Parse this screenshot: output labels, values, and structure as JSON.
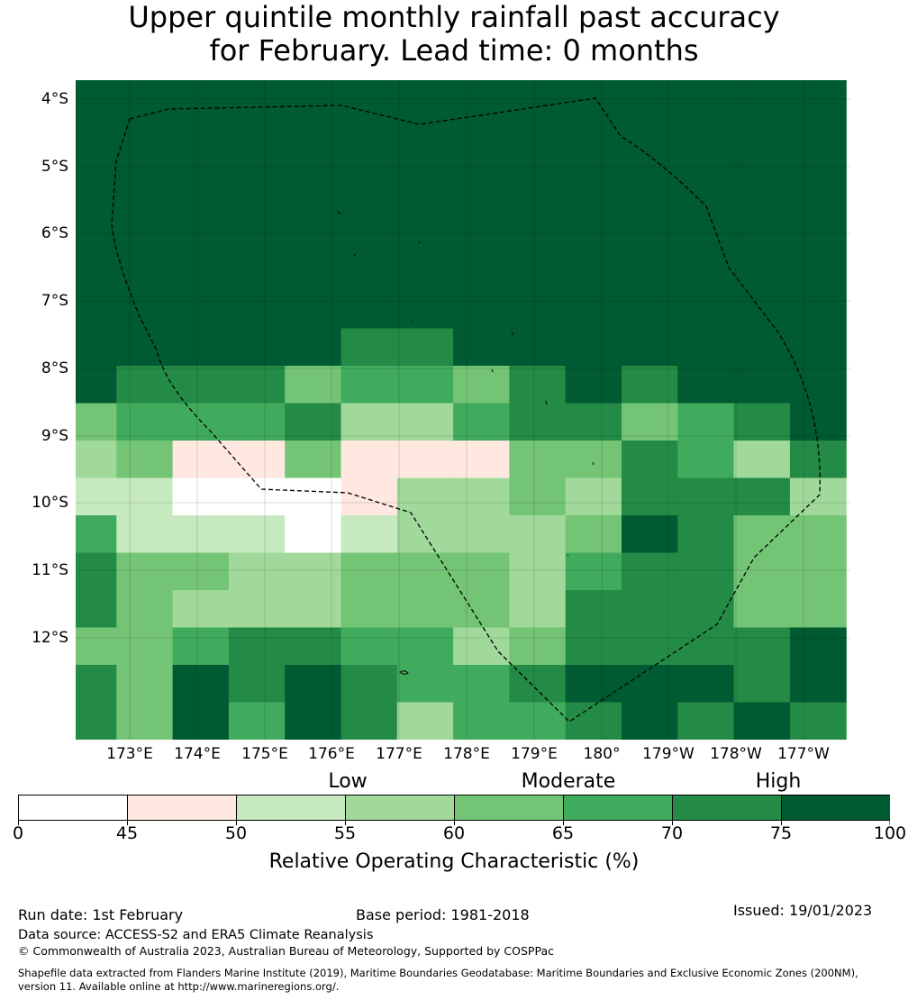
{
  "title": {
    "line1": "Upper quintile monthly rainfall past accuracy",
    "line2": "for February. Lead time: 0 months"
  },
  "map": {
    "lat_labels": [
      "4°S",
      "5°S",
      "6°S",
      "7°S",
      "8°S",
      "9°S",
      "10°S",
      "11°S",
      "12°S"
    ],
    "lon_labels": [
      "173°E",
      "174°E",
      "175°E",
      "176°E",
      "177°E",
      "178°E",
      "179°E",
      "180°",
      "179°W",
      "178°W",
      "177°W"
    ],
    "boundary_style": "dashed",
    "grid_values": [
      [
        80,
        80,
        80,
        80,
        80,
        80,
        80,
        80,
        80,
        80,
        80,
        80,
        80,
        80
      ],
      [
        80,
        80,
        80,
        80,
        80,
        80,
        80,
        80,
        80,
        80,
        80,
        80,
        80,
        80
      ],
      [
        80,
        80,
        80,
        80,
        80,
        80,
        80,
        80,
        80,
        80,
        80,
        80,
        80,
        80
      ],
      [
        80,
        80,
        80,
        80,
        80,
        80,
        80,
        80,
        80,
        80,
        80,
        80,
        80,
        80
      ],
      [
        80,
        80,
        80,
        80,
        80,
        80,
        80,
        80,
        80,
        80,
        80,
        80,
        80,
        80
      ],
      [
        80,
        80,
        80,
        80,
        80,
        80,
        80,
        80,
        80,
        80,
        80,
        80,
        80,
        80
      ],
      [
        80,
        80,
        80,
        80,
        80,
        80,
        80,
        80,
        80,
        80,
        80,
        80,
        80,
        80
      ],
      [
        80,
        80,
        80,
        80,
        80,
        80,
        80,
        80,
        80,
        80,
        80,
        80,
        80,
        80
      ],
      [
        80,
        80,
        80,
        80,
        80,
        80,
        80,
        80,
        80,
        80,
        80,
        80,
        80,
        80
      ],
      [
        80,
        80,
        80,
        80,
        80,
        72,
        72,
        80,
        80,
        80,
        80,
        80,
        80,
        80
      ],
      [
        80,
        72,
        72,
        72,
        62,
        67,
        67,
        62,
        72,
        80,
        72,
        80,
        80,
        80
      ],
      [
        62,
        67,
        67,
        67,
        72,
        57,
        57,
        67,
        72,
        72,
        62,
        67,
        72,
        80
      ],
      [
        57,
        62,
        47,
        47,
        62,
        47,
        47,
        47,
        62,
        62,
        72,
        67,
        57,
        72
      ],
      [
        52,
        52,
        40,
        40,
        40,
        47,
        57,
        57,
        62,
        57,
        72,
        72,
        72,
        57
      ],
      [
        67,
        52,
        52,
        52,
        40,
        52,
        57,
        57,
        57,
        62,
        80,
        72,
        62,
        62
      ],
      [
        72,
        62,
        62,
        57,
        57,
        62,
        62,
        62,
        57,
        67,
        72,
        72,
        62,
        62
      ],
      [
        72,
        62,
        57,
        57,
        57,
        62,
        62,
        62,
        57,
        72,
        72,
        72,
        62,
        62
      ],
      [
        62,
        62,
        67,
        72,
        72,
        67,
        67,
        57,
        62,
        72,
        72,
        72,
        72,
        80
      ],
      [
        72,
        62,
        80,
        72,
        80,
        72,
        67,
        67,
        72,
        80,
        80,
        80,
        72,
        80
      ],
      [
        72,
        62,
        80,
        67,
        80,
        72,
        57,
        67,
        67,
        72,
        80,
        72,
        80,
        72
      ]
    ]
  },
  "legend": {
    "categories": [
      "Low",
      "Moderate",
      "High"
    ],
    "bins": [
      0,
      45,
      50,
      55,
      60,
      65,
      70,
      75,
      100
    ],
    "colors": [
      "#ffffff",
      "#fee8e0",
      "#c7e9c0",
      "#a1d99b",
      "#74c476",
      "#41ab5d",
      "#238b45",
      "#005a32"
    ],
    "label": "Relative Operating Characteristic (%)"
  },
  "footer": {
    "run_date": "Run date: 1st February",
    "base_period": "Base period: 1981-2018",
    "issued": "Issued: 19/01/2023",
    "data_source": "Data source: ACCESS-S2 and ERA5 Climate Reanalysis",
    "copyright": "© Commonwealth of Australia 2023, Australian Bureau of Meteorology, Supported by COSPPac",
    "shapefile_line1": "Shapefile data extracted from Flanders Marine Institute (2019), Maritime Boundaries Geodatabase: Maritime Boundaries and Exclusive Economic Zones (200NM),",
    "shapefile_line2": "version 11. Available online at http://www.marineregions.org/."
  }
}
